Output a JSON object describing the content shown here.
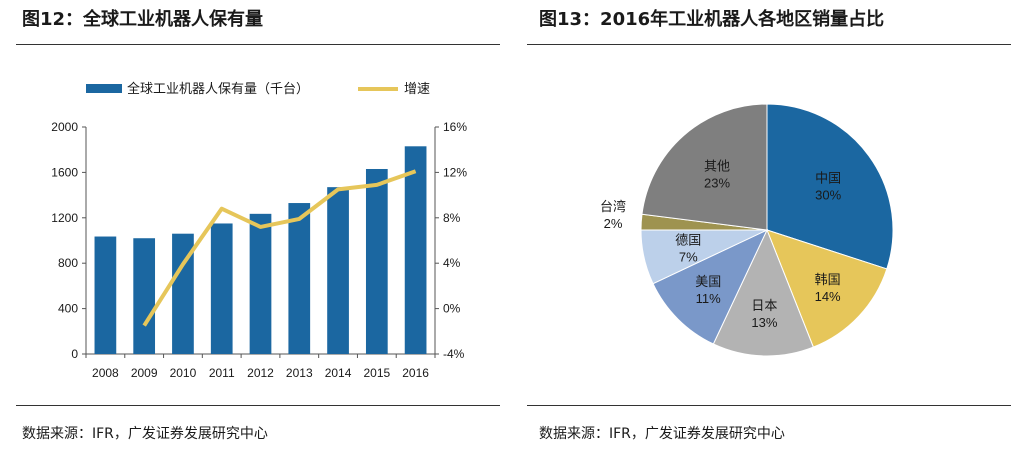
{
  "left": {
    "title": "图12：全球工业机器人保有量",
    "source": "数据来源：IFR，广发证券发展研究中心"
  },
  "right": {
    "title": "图13：2016年工业机器人各地区销量占比",
    "source": "数据来源：IFR，广发证券发展研究中心"
  },
  "colors": {
    "bar": "#1B67A1",
    "line": "#E6C65A",
    "pie_china": "#1B67A1",
    "pie_korea": "#E6C65A",
    "pie_japan": "#B3B3B3",
    "pie_usa": "#7A98C9",
    "pie_germany": "#BCD0EA",
    "pie_taiwan": "#9E9350",
    "pie_other": "#7F7F7F"
  },
  "chart_data": [
    {
      "type": "bar",
      "title": "",
      "categories": [
        "2008",
        "2009",
        "2010",
        "2011",
        "2012",
        "2013",
        "2014",
        "2015",
        "2016"
      ],
      "series": [
        {
          "name": "全球工业机器人保有量（千台）",
          "kind": "bar",
          "axis": "left",
          "values": [
            1035,
            1020,
            1060,
            1150,
            1235,
            1330,
            1470,
            1630,
            1830
          ]
        },
        {
          "name": "增速",
          "kind": "line",
          "axis": "right",
          "values": [
            null,
            -1.5,
            3.9,
            8.8,
            7.2,
            7.9,
            10.5,
            10.9,
            12.1
          ]
        }
      ],
      "ylim_left": [
        0,
        2000
      ],
      "yticks_left": [
        "0",
        "400",
        "800",
        "1200",
        "1600",
        "2000"
      ],
      "ylim_right": [
        -4,
        16
      ],
      "yticks_right": [
        "-4%",
        "0%",
        "4%",
        "8%",
        "12%",
        "16%"
      ],
      "legend_position": "top",
      "grid": false
    },
    {
      "type": "pie",
      "title": "",
      "slices": [
        {
          "label": "中国",
          "value": 30,
          "value_label": "30%"
        },
        {
          "label": "韩国",
          "value": 14,
          "value_label": "14%"
        },
        {
          "label": "日本",
          "value": 13,
          "value_label": "13%"
        },
        {
          "label": "美国",
          "value": 11,
          "value_label": "11%"
        },
        {
          "label": "德国",
          "value": 7,
          "value_label": "7%"
        },
        {
          "label": "台湾",
          "value": 2,
          "value_label": "2%"
        },
        {
          "label": "其他",
          "value": 23,
          "value_label": "23%"
        }
      ]
    }
  ]
}
